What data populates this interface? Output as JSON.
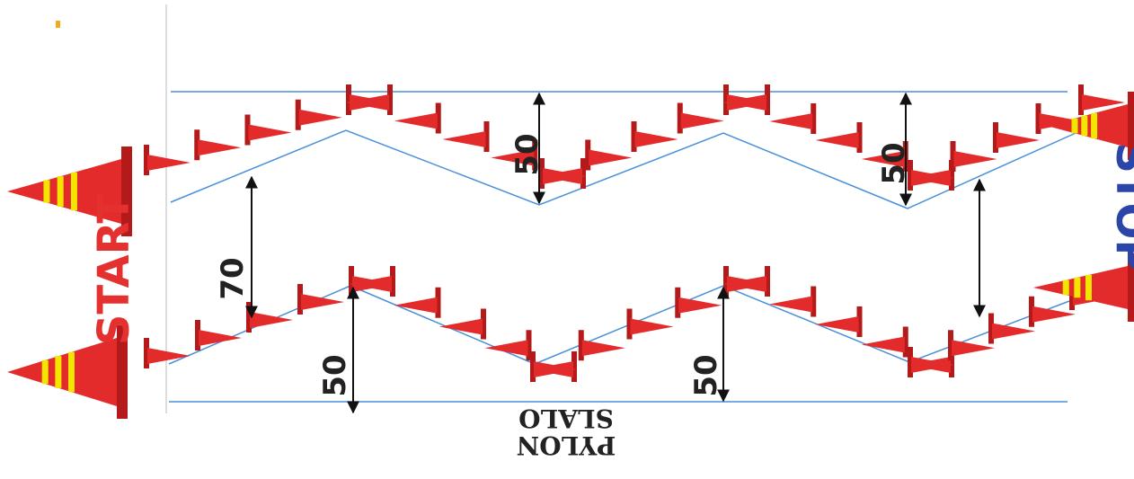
{
  "labels": {
    "start": "START",
    "stop": "STOP",
    "pylon_title": "PYLON",
    "pylon_sub": "SLALO"
  },
  "dimensions": {
    "top_left_height": "50",
    "top_right_height": "50",
    "lane_gap": "70",
    "bottom_left_height": "50",
    "bottom_right_height": "50"
  },
  "colors": {
    "cone": "#e32b2b",
    "cone_dark": "#b51a1a",
    "stripe": "#f2e500",
    "guide_line": "#4a90d9",
    "start_text": "#e53030",
    "stop_text": "#2b45a8"
  },
  "icons": {
    "cone": "traffic-cone-icon",
    "arrow": "dimension-arrow-icon"
  }
}
